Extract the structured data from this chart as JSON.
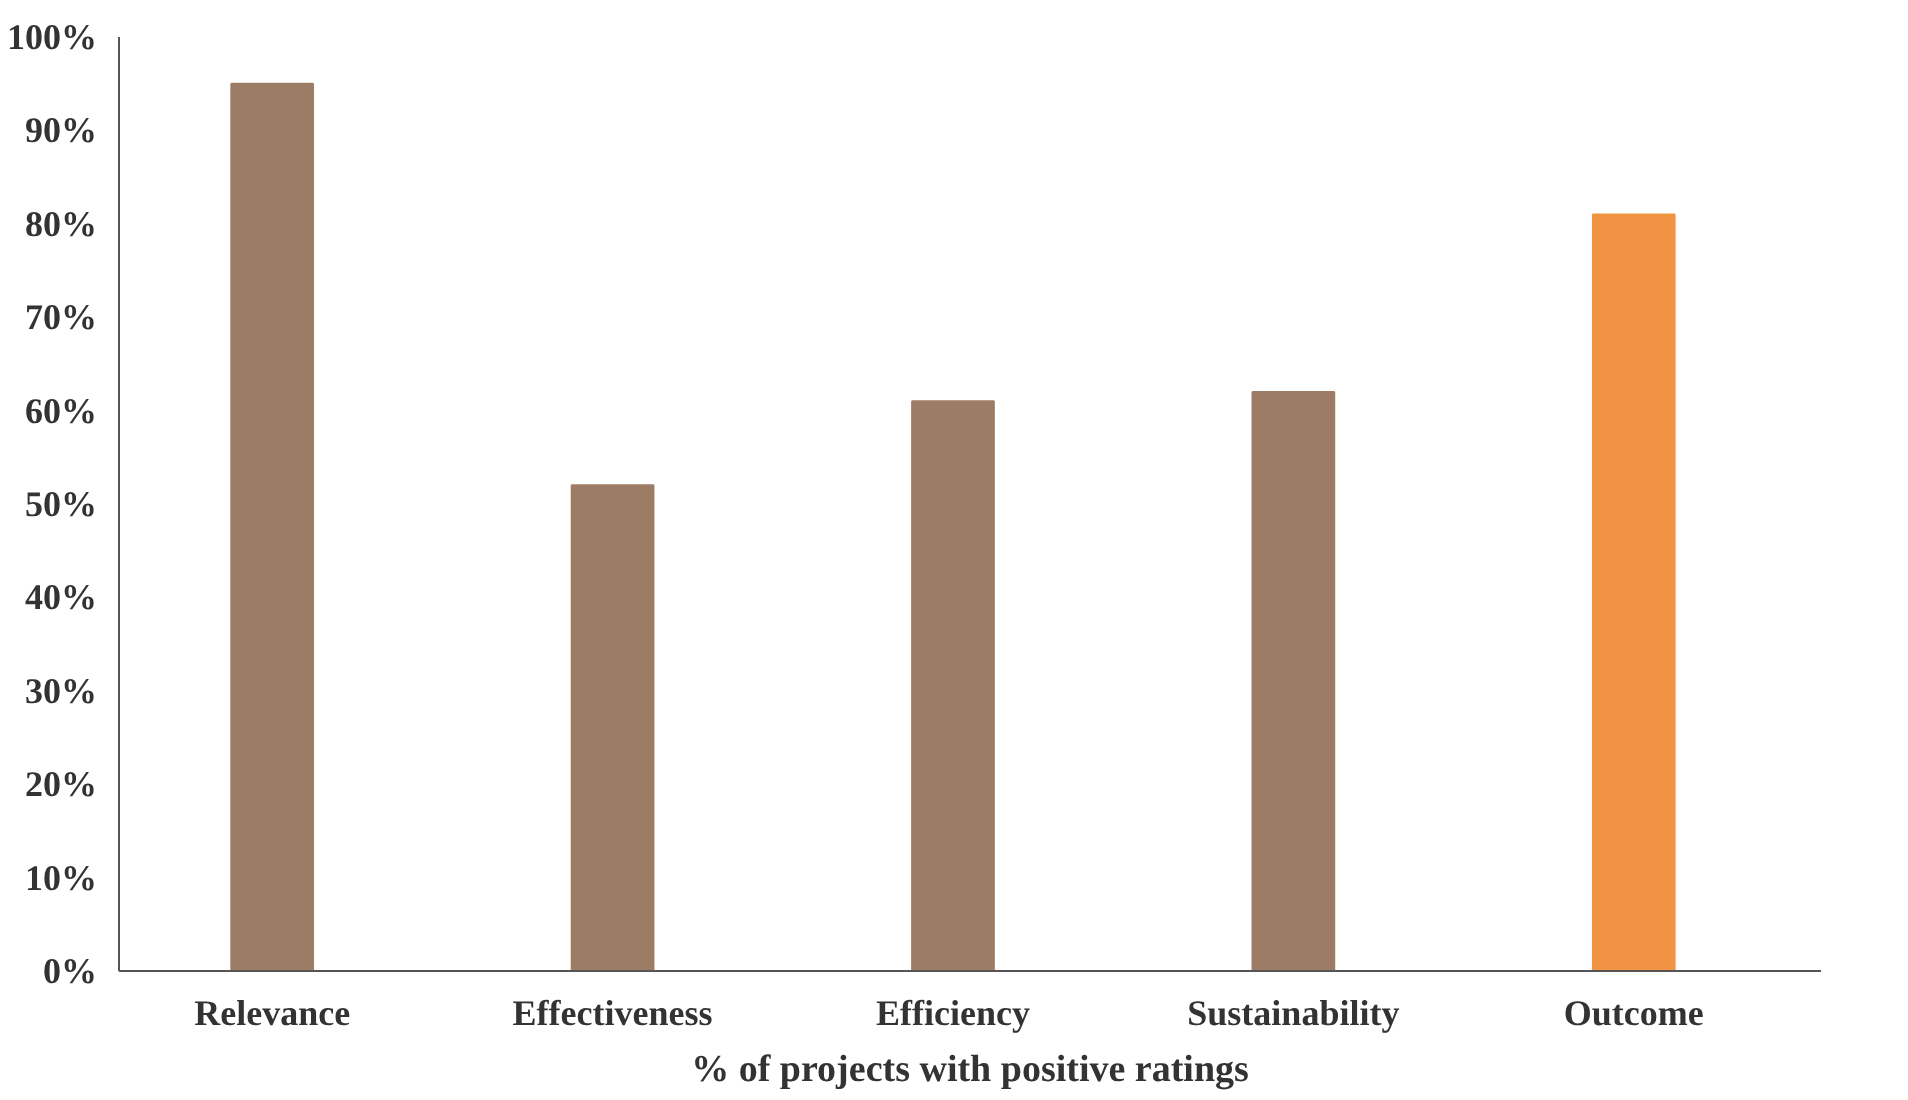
{
  "chart_data": {
    "type": "bar",
    "xlabel": "% of projects with positive ratings",
    "categories": [
      "Relevance",
      "Effectiveness",
      "Efficiency",
      "Sustainability",
      "Outcome"
    ],
    "values": [
      95,
      52,
      61,
      62,
      81
    ],
    "colors": [
      "#9c7c64",
      "#9c7c64",
      "#9c7c64",
      "#9c7c64",
      "#f09443"
    ],
    "ylim": [
      0,
      100
    ],
    "yticks": [
      {
        "value": 0,
        "label": "0%"
      },
      {
        "value": 10,
        "label": "10%"
      },
      {
        "value": 20,
        "label": "20%"
      },
      {
        "value": 30,
        "label": "30%"
      },
      {
        "value": 40,
        "label": "40%"
      },
      {
        "value": 50,
        "label": "50%"
      },
      {
        "value": 60,
        "label": "60%"
      },
      {
        "value": 70,
        "label": "70%"
      },
      {
        "value": 80,
        "label": "80%"
      },
      {
        "value": 90,
        "label": "90%"
      },
      {
        "value": 100,
        "label": "100%"
      }
    ],
    "grid": false
  }
}
